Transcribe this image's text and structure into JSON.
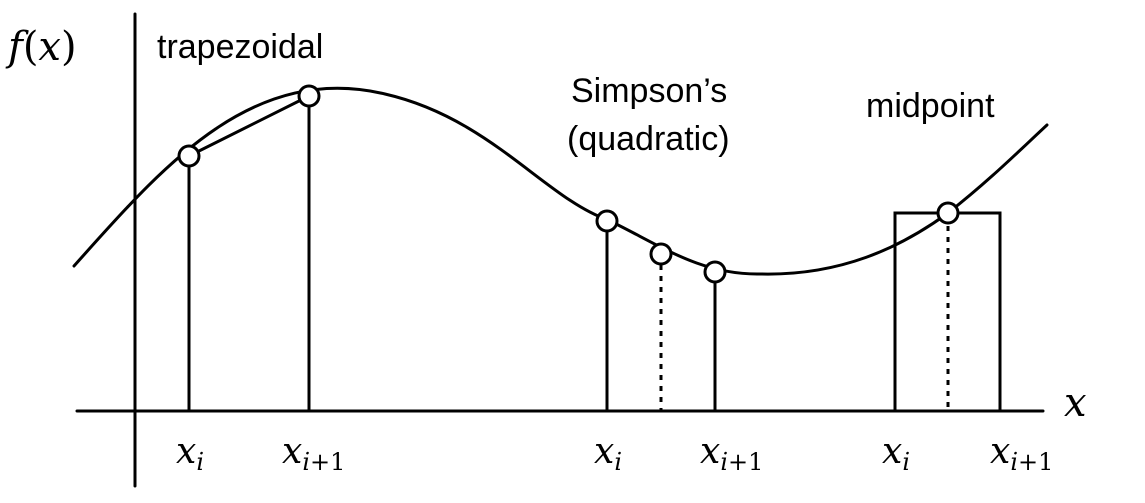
{
  "axes": {
    "y_label": {
      "f": "f",
      "open": "(",
      "var": "x",
      "close": ")"
    },
    "x_label": "x"
  },
  "methods": {
    "trapezoidal": {
      "label": "trapezoidal",
      "ticks": [
        {
          "base": "x",
          "sub": "i"
        },
        {
          "base": "x",
          "sub_pre": "i",
          "sub_op": "+",
          "sub_num": "1"
        }
      ]
    },
    "simpson": {
      "label_line1": "Simpson’s",
      "label_line2": "(quadratic)",
      "ticks": [
        {
          "base": "x",
          "sub": "i"
        },
        {
          "base": "x",
          "sub_pre": "i",
          "sub_op": "+",
          "sub_num": "1"
        }
      ]
    },
    "midpoint": {
      "label": "midpoint",
      "ticks": [
        {
          "base": "x",
          "sub": "i"
        },
        {
          "base": "x",
          "sub_pre": "i",
          "sub_op": "+",
          "sub_num": "1"
        }
      ]
    }
  }
}
